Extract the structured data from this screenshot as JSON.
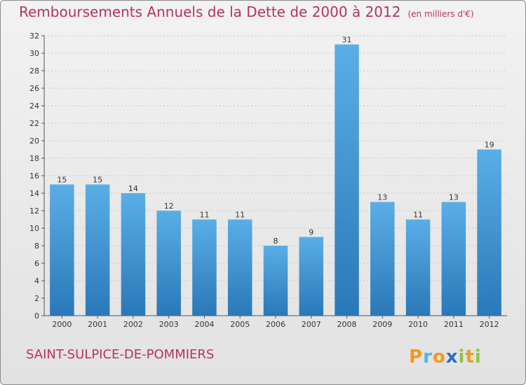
{
  "header": {
    "title": "Remboursements Annuels de la Dette de 2000 à 2012",
    "subtitle": "(en milliers d'€)"
  },
  "footer": {
    "town": "SAINT-SULPICE-DE-POMMIERS",
    "logo_text": "Proxiti"
  },
  "colors": {
    "title": "#b8325b",
    "bar_top": "#5aaee6",
    "bar_bottom": "#2a78b8",
    "grid": "#c8c8c8"
  },
  "chart_data": {
    "type": "bar",
    "title": "Remboursements Annuels de la Dette de 2000 à 2012",
    "categories": [
      "2000",
      "2001",
      "2002",
      "2003",
      "2004",
      "2005",
      "2006",
      "2007",
      "2008",
      "2009",
      "2010",
      "2011",
      "2012"
    ],
    "values": [
      15,
      15,
      14,
      12,
      11,
      11,
      8,
      9,
      31,
      13,
      11,
      13,
      19
    ],
    "ylim": [
      0,
      32
    ],
    "yticks": [
      0,
      2,
      4,
      6,
      8,
      10,
      12,
      14,
      16,
      18,
      20,
      22,
      24,
      26,
      28,
      30,
      32
    ],
    "xlabel": "",
    "ylabel": "",
    "grid": true,
    "data_labels": true
  }
}
